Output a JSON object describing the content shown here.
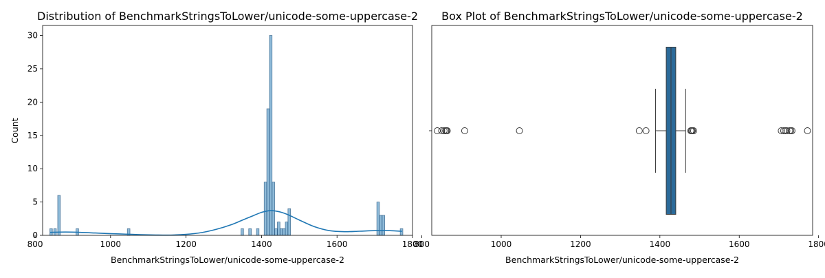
{
  "chart_data": [
    {
      "type": "histogram",
      "title": "Distribution of BenchmarkStringsToLower/unicode-some-uppercase-2",
      "xlabel": "BenchmarkStringsToLower/unicode-some-uppercase-2",
      "ylabel": "Count",
      "xlim": [
        820,
        1800
      ],
      "ylim": [
        0,
        31.5
      ],
      "xticks": [
        800,
        1000,
        1200,
        1400,
        1600,
        1800
      ],
      "yticks": [
        0,
        5,
        10,
        15,
        20,
        25,
        30
      ],
      "grid": false,
      "bin_width": 6.9,
      "bar_color": "#1f77b4",
      "bar_alpha": 0.5,
      "kde_color": "#1f77b4",
      "bars": [
        {
          "x": 839.0,
          "count": 1
        },
        {
          "x": 849.5,
          "count": 1
        },
        {
          "x": 860.0,
          "count": 6
        },
        {
          "x": 908.5,
          "count": 1
        },
        {
          "x": 1044.5,
          "count": 1
        },
        {
          "x": 1345.5,
          "count": 1
        },
        {
          "x": 1366.0,
          "count": 1
        },
        {
          "x": 1386.5,
          "count": 1
        },
        {
          "x": 1407.0,
          "count": 8
        },
        {
          "x": 1414.0,
          "count": 19
        },
        {
          "x": 1421.0,
          "count": 30
        },
        {
          "x": 1428.0,
          "count": 8
        },
        {
          "x": 1435.0,
          "count": 1
        },
        {
          "x": 1442.0,
          "count": 2
        },
        {
          "x": 1449.0,
          "count": 1
        },
        {
          "x": 1456.0,
          "count": 1
        },
        {
          "x": 1463.0,
          "count": 2
        },
        {
          "x": 1470.0,
          "count": 4
        },
        {
          "x": 1705.5,
          "count": 5
        },
        {
          "x": 1712.5,
          "count": 3
        },
        {
          "x": 1719.5,
          "count": 3
        },
        {
          "x": 1767.5,
          "count": 1
        }
      ],
      "kde": {
        "x": [
          840,
          880,
          920,
          960,
          1000,
          1040,
          1080,
          1120,
          1160,
          1200,
          1240,
          1280,
          1320,
          1350,
          1380,
          1400,
          1420,
          1430,
          1450,
          1470,
          1500,
          1540,
          1580,
          1620,
          1660,
          1700,
          1740,
          1772
        ],
        "y": [
          0.45,
          0.5,
          0.45,
          0.35,
          0.25,
          0.18,
          0.1,
          0.05,
          0.04,
          0.15,
          0.4,
          0.9,
          1.6,
          2.3,
          3.0,
          3.45,
          3.7,
          3.7,
          3.5,
          3.1,
          2.3,
          1.3,
          0.7,
          0.55,
          0.62,
          0.7,
          0.7,
          0.6
        ]
      }
    },
    {
      "type": "box",
      "title": "Box Plot of BenchmarkStringsToLower/unicode-some-uppercase-2",
      "xlabel": "BenchmarkStringsToLower/unicode-some-uppercase-2",
      "xlim": [
        825,
        1785
      ],
      "xticks": [
        800,
        1000,
        1200,
        1400,
        1600,
        1800
      ],
      "grid": false,
      "box_color": "#2b6a99",
      "q1": 1416,
      "median": 1428,
      "q3": 1440,
      "whisker_low": 1389,
      "whisker_high": 1465,
      "outliers": [
        839,
        850,
        856,
        860,
        862,
        864,
        908,
        1046,
        1348,
        1365,
        1478,
        1480,
        1482,
        1485,
        1706,
        1712,
        1716,
        1720,
        1727,
        1730,
        1733,
        1772
      ]
    }
  ]
}
